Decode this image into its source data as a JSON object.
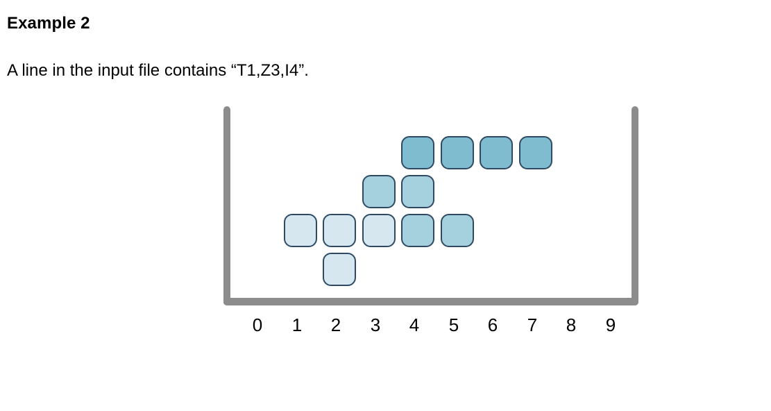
{
  "heading": "Example 2",
  "description": "A line in the input file contains “T1,Z3,I4”.",
  "axis": {
    "labels": [
      "0",
      "1",
      "2",
      "3",
      "4",
      "5",
      "6",
      "7",
      "8",
      "9"
    ]
  },
  "colors": {
    "wall": "#8c8c8c",
    "border": "#2e4a63",
    "light": "#d6e7f0",
    "medium": "#a5d0de",
    "dark": "#7fbccf"
  },
  "pieces": [
    {
      "name": "T",
      "column": 1,
      "color": "light",
      "cells": [
        [
          1,
          0
        ],
        [
          2,
          0
        ],
        [
          3,
          0
        ],
        [
          2,
          -1
        ]
      ]
    },
    {
      "name": "Z",
      "column": 3,
      "color": "medium",
      "cells": [
        [
          3,
          1
        ],
        [
          4,
          1
        ],
        [
          4,
          0
        ],
        [
          5,
          0
        ]
      ]
    },
    {
      "name": "I",
      "column": 4,
      "color": "dark",
      "cells": [
        [
          4,
          2
        ],
        [
          5,
          2
        ],
        [
          6,
          2
        ],
        [
          7,
          2
        ]
      ]
    }
  ]
}
